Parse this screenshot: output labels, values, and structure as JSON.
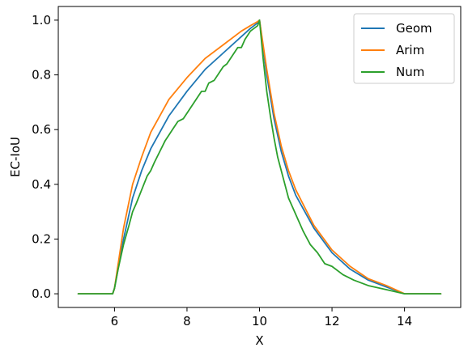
{
  "chart_data": {
    "type": "line",
    "xlabel": "X",
    "ylabel": "EC-IoU",
    "xlim": [
      4.45,
      15.55
    ],
    "ylim": [
      -0.05,
      1.05
    ],
    "xticks": [
      6,
      8,
      10,
      12,
      14
    ],
    "yticks": [
      0.0,
      0.2,
      0.4,
      0.6,
      0.8,
      1.0
    ],
    "legend_position": "top-right",
    "series": [
      {
        "name": "Geom",
        "color": "#1f77b4",
        "x": [
          5,
          5.5,
          5.95,
          6.0,
          6.25,
          6.5,
          6.75,
          7.0,
          7.5,
          8.0,
          8.5,
          9.0,
          9.5,
          9.75,
          9.95,
          10.0,
          10.2,
          10.4,
          10.6,
          10.8,
          11.0,
          11.5,
          12.0,
          12.5,
          13.0,
          13.5,
          14.0,
          14.5,
          15.0
        ],
        "y": [
          0,
          0,
          0,
          0.02,
          0.2,
          0.35,
          0.45,
          0.53,
          0.65,
          0.74,
          0.82,
          0.88,
          0.94,
          0.97,
          0.99,
          1.0,
          0.8,
          0.64,
          0.52,
          0.43,
          0.36,
          0.24,
          0.15,
          0.09,
          0.05,
          0.025,
          0.0,
          0.0,
          0.0
        ]
      },
      {
        "name": "Arim",
        "color": "#ff7f0e",
        "x": [
          5,
          5.5,
          5.95,
          6.0,
          6.25,
          6.5,
          6.75,
          7.0,
          7.5,
          8.0,
          8.5,
          9.0,
          9.5,
          9.75,
          9.95,
          10.0,
          10.2,
          10.4,
          10.6,
          10.8,
          11.0,
          11.5,
          12.0,
          12.5,
          13.0,
          13.5,
          14.0,
          14.5,
          15.0
        ],
        "y": [
          0,
          0,
          0,
          0.02,
          0.24,
          0.4,
          0.5,
          0.59,
          0.71,
          0.79,
          0.86,
          0.91,
          0.96,
          0.98,
          0.995,
          1.0,
          0.82,
          0.66,
          0.54,
          0.45,
          0.38,
          0.25,
          0.16,
          0.1,
          0.055,
          0.03,
          0.0,
          0.0,
          0.0
        ]
      },
      {
        "name": "Num",
        "color": "#2ca02c",
        "x": [
          5,
          5.5,
          5.95,
          6.0,
          6.1,
          6.25,
          6.4,
          6.5,
          6.6,
          6.75,
          6.9,
          7.0,
          7.1,
          7.25,
          7.4,
          7.5,
          7.6,
          7.75,
          7.9,
          8.0,
          8.1,
          8.25,
          8.4,
          8.5,
          8.6,
          8.75,
          8.9,
          9.0,
          9.1,
          9.25,
          9.4,
          9.5,
          9.6,
          9.75,
          9.85,
          9.95,
          10.0,
          10.1,
          10.2,
          10.3,
          10.4,
          10.5,
          10.6,
          10.7,
          10.8,
          10.9,
          11.0,
          11.2,
          11.4,
          11.6,
          11.8,
          12.0,
          12.3,
          12.6,
          13.0,
          13.5,
          14.0,
          14.5,
          15.0
        ],
        "y": [
          0,
          0,
          0,
          0.02,
          0.09,
          0.18,
          0.25,
          0.3,
          0.33,
          0.38,
          0.43,
          0.45,
          0.48,
          0.52,
          0.56,
          0.58,
          0.6,
          0.63,
          0.64,
          0.66,
          0.68,
          0.71,
          0.74,
          0.74,
          0.77,
          0.78,
          0.81,
          0.83,
          0.84,
          0.87,
          0.9,
          0.9,
          0.93,
          0.96,
          0.97,
          0.98,
          1.0,
          0.86,
          0.74,
          0.65,
          0.57,
          0.5,
          0.45,
          0.4,
          0.35,
          0.32,
          0.29,
          0.23,
          0.18,
          0.15,
          0.11,
          0.1,
          0.07,
          0.05,
          0.03,
          0.015,
          0.0,
          0.0,
          0.0
        ]
      }
    ]
  }
}
